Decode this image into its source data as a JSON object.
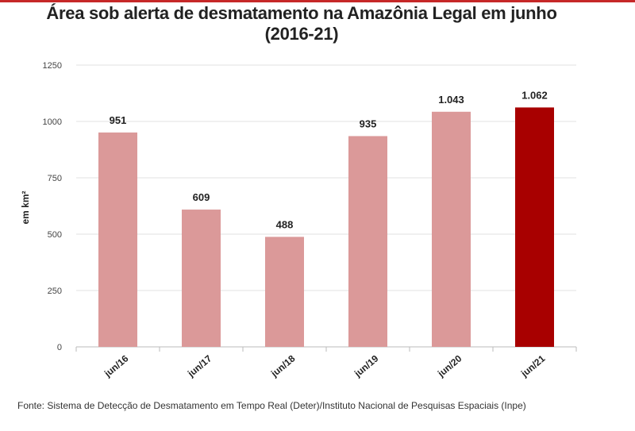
{
  "chart_data": {
    "type": "bar",
    "title": "Área sob alerta de desmatamento na Amazônia Legal em junho",
    "subtitle": "(2016-21)",
    "xlabel": "",
    "ylabel": "em km²",
    "categories": [
      "jun/16",
      "jun/17",
      "jun/18",
      "jun/19",
      "jun/20",
      "jun/21"
    ],
    "values": [
      951,
      609,
      488,
      935,
      1043,
      1062
    ],
    "data_labels": [
      "951",
      "609",
      "488",
      "935",
      "1.043",
      "1.062"
    ],
    "ylim": [
      0,
      1250
    ],
    "yticks": [
      0,
      250,
      500,
      750,
      1000,
      1250
    ],
    "ytick_labels": [
      "0",
      "250",
      "500",
      "750",
      "1000",
      "1250"
    ],
    "grid": true,
    "colors": {
      "bar": "#db9999",
      "highlight": "#a80000",
      "grid": "#e2e2e2",
      "accent_rule": "#c62828"
    },
    "highlight_index": 5
  },
  "footer": {
    "source": "Fonte: Sistema de Detecção de Desmatamento em Tempo Real (Deter)/Instituto Nacional de Pesquisas Espaciais (Inpe)"
  }
}
